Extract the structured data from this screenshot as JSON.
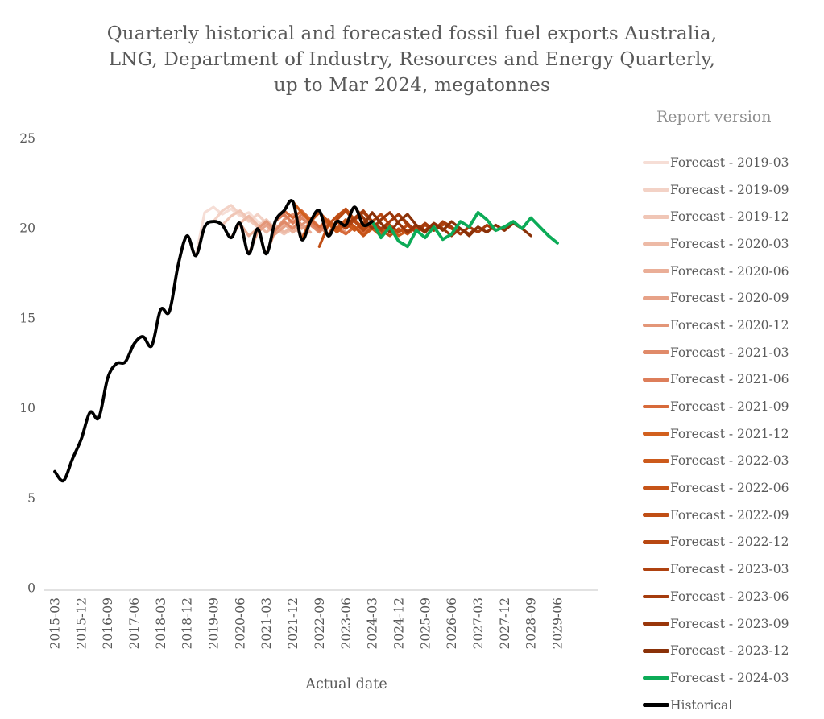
{
  "title": {
    "line1": "Quarterly historical and forecasted fossil fuel exports Australia,",
    "line2": "LNG, Department of Industry, Resources and Energy Quarterly,",
    "line3": "up to Mar 2024, megatonnes"
  },
  "legend": {
    "title": "Report version"
  },
  "axes": {
    "x_label": "Actual date",
    "y_tick_labels": [
      "0",
      "5",
      "10",
      "15",
      "20",
      "25"
    ]
  },
  "chart_data": {
    "type": "line",
    "title": "Quarterly historical and forecasted fossil fuel exports Australia, LNG, Department of Industry, Resources and Energy Quarterly, up to Mar 2024, megatonnes",
    "xlabel": "Actual date",
    "ylabel": "",
    "ylim": [
      0,
      25
    ],
    "y_ticks": [
      0,
      5,
      10,
      15,
      20,
      25
    ],
    "x_start": "2015-03",
    "x_unit": "quarter",
    "x_tick_step_quarters": 3,
    "x_tick_labels": [
      "2015-03",
      "2015-12",
      "2016-09",
      "2017-06",
      "2018-03",
      "2018-12",
      "2019-09",
      "2020-06",
      "2021-03",
      "2021-12",
      "2022-09",
      "2023-06",
      "2024-03",
      "2024-12",
      "2025-09",
      "2026-06",
      "2027-03",
      "2027-12",
      "2028-09",
      "2029-06"
    ],
    "legend_position": "right",
    "grid": false,
    "series": [
      {
        "name": "Forecast - 2019-03",
        "color": "#f6ded6",
        "start_index": 16,
        "smooth": false,
        "values": [
          18.5,
          20.9,
          21.2,
          20.8,
          21.1,
          20.7,
          20.9,
          20.4,
          20.1
        ]
      },
      {
        "name": "Forecast - 2019-09",
        "color": "#f3d2c6",
        "start_index": 18,
        "smooth": false,
        "values": [
          20.4,
          21.0,
          21.3,
          20.8,
          20.4,
          20.8,
          20.3,
          19.9,
          20.2
        ]
      },
      {
        "name": "Forecast - 2019-12",
        "color": "#f0c6b6",
        "start_index": 19,
        "smooth": false,
        "values": [
          20.2,
          20.7,
          21.0,
          20.5,
          20.1,
          20.5,
          20.0,
          19.7,
          20.0
        ]
      },
      {
        "name": "Forecast - 2020-03",
        "color": "#edbaa6",
        "start_index": 20,
        "smooth": false,
        "values": [
          19.5,
          20.3,
          20.7,
          20.2,
          19.8,
          20.2,
          19.8,
          20.1,
          19.7
        ]
      },
      {
        "name": "Forecast - 2020-06",
        "color": "#eaae97",
        "start_index": 21,
        "smooth": false,
        "values": [
          20.3,
          19.6,
          20.0,
          20.4,
          19.9,
          20.3,
          19.8,
          20.2,
          19.8
        ]
      },
      {
        "name": "Forecast - 2020-09",
        "color": "#e7a288",
        "start_index": 22,
        "smooth": false,
        "values": [
          18.6,
          19.8,
          20.2,
          19.7,
          20.1,
          20.5,
          20.0,
          20.3,
          19.9
        ]
      },
      {
        "name": "Forecast - 2020-12",
        "color": "#e39678",
        "start_index": 23,
        "smooth": false,
        "values": [
          20.0,
          20.4,
          19.9,
          20.5,
          20.8,
          20.2,
          20.6,
          20.1,
          19.7,
          20.1,
          19.8
        ]
      },
      {
        "name": "Forecast - 2021-03",
        "color": "#e08a69",
        "start_index": 24,
        "smooth": false,
        "values": [
          18.6,
          19.9,
          20.4,
          20.0,
          20.6,
          20.2,
          19.8,
          20.3,
          19.9,
          20.4,
          20.0
        ]
      },
      {
        "name": "Forecast - 2021-06",
        "color": "#dd7e5a",
        "start_index": 25,
        "smooth": false,
        "values": [
          20.4,
          20.8,
          20.3,
          20.8,
          20.4,
          19.9,
          20.4,
          20.0,
          20.5,
          20.1,
          19.7
        ]
      },
      {
        "name": "Forecast - 2021-09",
        "color": "#d76a3a",
        "start_index": 26,
        "smooth": false,
        "values": [
          21.0,
          20.6,
          21.0,
          20.5,
          20.1,
          20.5,
          20.0,
          19.7,
          20.1,
          19.8,
          20.2
        ]
      },
      {
        "name": "Forecast - 2021-12",
        "color": "#d2601e",
        "start_index": 27,
        "smooth": false,
        "values": [
          21.5,
          20.9,
          20.4,
          20.9,
          20.4,
          20.0,
          20.5,
          20.1,
          19.6,
          20.0,
          19.7,
          20.1
        ]
      },
      {
        "name": "Forecast - 2022-03",
        "color": "#cc5a1b",
        "start_index": 28,
        "smooth": false,
        "values": [
          19.4,
          20.5,
          20.9,
          20.3,
          19.8,
          20.3,
          19.9,
          20.4,
          20.0,
          19.6,
          20.0,
          19.6,
          19.9
        ]
      },
      {
        "name": "Forecast - 2022-06",
        "color": "#c65418",
        "start_index": 29,
        "smooth": false,
        "values": [
          20.4,
          20.9,
          20.4,
          20.0,
          20.5,
          20.1,
          19.6,
          20.1,
          19.7,
          20.2,
          19.8,
          20.2,
          19.9
        ]
      },
      {
        "name": "Forecast - 2022-09",
        "color": "#c04e15",
        "start_index": 30,
        "smooth": false,
        "values": [
          19.0,
          20.2,
          20.7,
          21.1,
          20.5,
          20.0,
          20.4,
          19.9,
          19.6,
          20.0,
          19.7,
          20.1,
          19.8
        ]
      },
      {
        "name": "Forecast - 2022-12",
        "color": "#b84812",
        "start_index": 31,
        "smooth": false,
        "values": [
          19.6,
          20.5,
          21.0,
          20.4,
          19.9,
          20.4,
          20.8,
          20.2,
          19.8,
          20.2,
          19.9,
          20.3,
          19.9,
          20.2
        ]
      },
      {
        "name": "Forecast - 2023-03",
        "color": "#af4210",
        "start_index": 32,
        "smooth": false,
        "values": [
          20.4,
          20.0,
          20.5,
          20.9,
          20.4,
          19.9,
          20.4,
          20.8,
          20.2,
          19.8,
          20.2,
          19.9,
          20.3,
          20.0,
          19.7,
          20.1,
          19.8
        ]
      },
      {
        "name": "Forecast - 2023-06",
        "color": "#a53c0d",
        "start_index": 33,
        "smooth": false,
        "values": [
          20.2,
          20.6,
          21.0,
          20.4,
          20.0,
          20.4,
          20.8,
          20.3,
          19.8,
          20.3,
          19.9,
          20.4,
          20.1,
          19.7,
          20.1,
          19.8,
          20.2,
          19.9
        ]
      },
      {
        "name": "Forecast - 2023-09",
        "color": "#99360a",
        "start_index": 34,
        "smooth": false,
        "values": [
          21.2,
          20.6,
          20.0,
          20.5,
          20.9,
          20.3,
          19.8,
          20.2,
          19.9,
          20.3,
          20.0,
          19.6,
          20.0,
          19.7,
          20.1,
          19.8,
          20.2,
          19.9,
          20.3
        ]
      },
      {
        "name": "Forecast - 2023-12",
        "color": "#8a3108",
        "start_index": 35,
        "smooth": false,
        "values": [
          20.2,
          20.9,
          20.3,
          19.8,
          20.4,
          20.8,
          20.2,
          19.8,
          20.3,
          19.9,
          20.4,
          20.0,
          19.6,
          20.1,
          19.8,
          20.2,
          19.9,
          20.3,
          20.0,
          19.6
        ]
      },
      {
        "name": "Forecast - 2024-03",
        "color": "#0cab57",
        "start_index": 36,
        "smooth": false,
        "values": [
          20.4,
          19.5,
          20.1,
          19.3,
          19.0,
          19.9,
          19.5,
          20.1,
          19.4,
          19.7,
          20.4,
          20.1,
          20.9,
          20.5,
          19.9,
          20.1,
          20.4,
          20.0,
          20.6,
          20.1,
          19.6,
          19.2
        ]
      },
      {
        "name": "Historical",
        "color": "#000000",
        "start_index": 0,
        "smooth": true,
        "values": [
          6.5,
          6.0,
          7.2,
          8.3,
          9.8,
          9.5,
          11.7,
          12.5,
          12.6,
          13.6,
          14.0,
          13.5,
          15.5,
          15.4,
          18.0,
          19.6,
          18.5,
          20.1,
          20.4,
          20.2,
          19.5,
          20.3,
          18.6,
          20.0,
          18.6,
          20.4,
          21.0,
          21.5,
          19.4,
          20.4,
          21.0,
          19.6,
          20.4,
          20.2,
          21.2,
          20.2,
          20.4
        ]
      }
    ]
  }
}
